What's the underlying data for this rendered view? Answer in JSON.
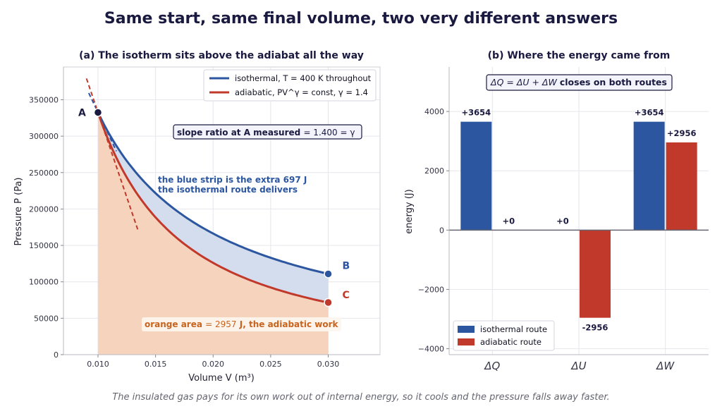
{
  "figure": {
    "title": "Same start, same final volume, two very different answers",
    "caption": "The insulated gas pays for its own work out of internal energy, so it cools and the pressure falls away faster."
  },
  "colors": {
    "isothermal": "#2c57a0",
    "adiabatic": "#c0392b",
    "fill_blue": "#d3ddee",
    "fill_orange": "#f6d3bd",
    "orange_text": "#c8641e",
    "navy": "#1a1a40"
  },
  "chart_data": [
    {
      "type": "line",
      "panel_title": "(a) The isotherm sits above the adiabat all the way",
      "xlabel": "Volume V  (m³)",
      "ylabel": "Pressure P  (Pa)",
      "xlim": [
        0.007,
        0.0345
      ],
      "ylim": [
        0,
        395000
      ],
      "xticks": [
        0.01,
        0.015,
        0.02,
        0.025,
        0.03
      ],
      "xtick_labels": [
        "0.010",
        "0.015",
        "0.020",
        "0.025",
        "0.030"
      ],
      "yticks": [
        0,
        50000,
        100000,
        150000,
        200000,
        250000,
        300000,
        350000
      ],
      "ytick_labels": [
        "0",
        "50000",
        "100000",
        "150000",
        "200000",
        "250000",
        "300000",
        "350000"
      ],
      "grid": true,
      "legend_position": "top-right",
      "series": [
        {
          "name": "isothermal, T = 400 K throughout",
          "kind": "isothermal",
          "P0": 332600,
          "V0": 0.01,
          "V1": 0.03
        },
        {
          "name": "adiabatic, PV^γ = const, γ = 1.4",
          "kind": "adiabatic",
          "P0": 332600,
          "V0": 0.01,
          "V1": 0.03,
          "gamma": 1.4
        }
      ],
      "points": [
        {
          "label": "A",
          "x": 0.01,
          "y": 332600
        },
        {
          "label": "B",
          "x": 0.03,
          "y": 110900
        },
        {
          "label": "C",
          "x": 0.03,
          "y": 71600
        }
      ],
      "tangent_lines": [
        {
          "name": "isothermal tangent at A",
          "x": [
            0.0092,
            0.0116
          ],
          "slope": -33260000
        },
        {
          "name": "adiabatic tangent at A",
          "x": [
            0.009,
            0.0135
          ],
          "slope": -46564000
        }
      ],
      "annotations": {
        "slope_box_prefix": "slope ratio at A measured",
        "slope_box_value": "= 1.400 = γ",
        "strip_line1": "the blue strip is the extra 697 J",
        "strip_line2": "the isothermal route delivers",
        "orange_prefix": "orange area",
        "orange_value": "= 2957",
        "orange_suffix": "J, the adiabatic work"
      }
    },
    {
      "type": "bar",
      "panel_title": "(b) Where the energy came from",
      "ylabel": "energy  (J)",
      "categories": [
        "ΔQ",
        "ΔU",
        "ΔW"
      ],
      "ylim": [
        -4200,
        5500
      ],
      "yticks": [
        -4000,
        -2000,
        0,
        2000,
        4000
      ],
      "ytick_labels": [
        "−4000",
        "−2000",
        "0",
        "2000",
        "4000"
      ],
      "grid": true,
      "legend_position": "bottom-left",
      "series": [
        {
          "name": "isothermal route",
          "values": [
            3654,
            0,
            3654
          ],
          "labels": [
            "+3654",
            "+0",
            "+3654"
          ]
        },
        {
          "name": "adiabatic route",
          "values": [
            0,
            -2956,
            2956
          ],
          "labels": [
            "+0",
            "-2956",
            "+2956"
          ]
        }
      ],
      "annotation": {
        "eq": "ΔQ = ΔU + ΔW",
        "text": "closes on both routes"
      }
    }
  ]
}
